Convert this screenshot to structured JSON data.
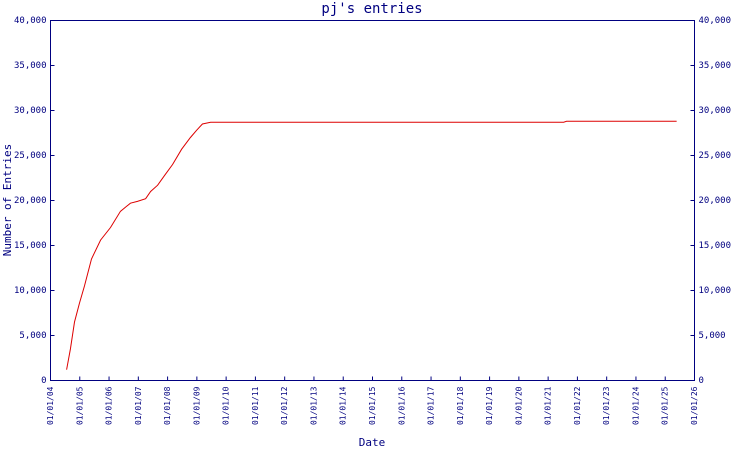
{
  "chart_data": {
    "type": "line",
    "title": "pj's entries",
    "xlabel": "Date",
    "ylabel": "Number of Entries",
    "x": [
      2004.55,
      2004.68,
      2004.82,
      2004.99,
      2005.16,
      2005.4,
      2005.71,
      2006.05,
      2006.39,
      2006.73,
      2006.97,
      2007.25,
      2007.42,
      2007.66,
      2007.9,
      2008.17,
      2008.48,
      2008.78,
      2008.99,
      2009.19,
      2009.47,
      2021.53,
      2021.63,
      2025.39
    ],
    "series": [
      {
        "name": "pj",
        "color": "#dd0000",
        "values": [
          1200,
          3500,
          6500,
          8600,
          10500,
          13500,
          15600,
          17000,
          18800,
          19700,
          19900,
          20200,
          21000,
          21700,
          22800,
          24000,
          25700,
          27000,
          27800,
          28500,
          28700,
          28700,
          28800,
          28800
        ]
      }
    ],
    "xlim": [
      2004,
      2026
    ],
    "xticks": [
      {
        "value": 2004,
        "label": "01/01/04"
      },
      {
        "value": 2005,
        "label": "01/01/05"
      },
      {
        "value": 2006,
        "label": "01/01/06"
      },
      {
        "value": 2007,
        "label": "01/01/07"
      },
      {
        "value": 2008,
        "label": "01/01/08"
      },
      {
        "value": 2009,
        "label": "01/01/09"
      },
      {
        "value": 2010,
        "label": "01/01/10"
      },
      {
        "value": 2011,
        "label": "01/01/11"
      },
      {
        "value": 2012,
        "label": "01/01/12"
      },
      {
        "value": 2013,
        "label": "01/01/13"
      },
      {
        "value": 2014,
        "label": "01/01/14"
      },
      {
        "value": 2015,
        "label": "01/01/15"
      },
      {
        "value": 2016,
        "label": "01/01/16"
      },
      {
        "value": 2017,
        "label": "01/01/17"
      },
      {
        "value": 2018,
        "label": "01/01/18"
      },
      {
        "value": 2019,
        "label": "01/01/19"
      },
      {
        "value": 2020,
        "label": "01/01/20"
      },
      {
        "value": 2021,
        "label": "01/01/21"
      },
      {
        "value": 2022,
        "label": "01/01/22"
      },
      {
        "value": 2023,
        "label": "01/01/23"
      },
      {
        "value": 2024,
        "label": "01/01/24"
      },
      {
        "value": 2025,
        "label": "01/01/25"
      },
      {
        "value": 2026,
        "label": "01/01/26"
      }
    ],
    "ylim": [
      0,
      40000
    ],
    "yticks": [
      0,
      {
        "value": 5000,
        "label": "5,000"
      },
      {
        "value": 10000,
        "label": "10,000"
      },
      {
        "value": 15000,
        "label": "15,000"
      },
      {
        "value": 20000,
        "label": "20,000"
      },
      {
        "value": 25000,
        "label": "25,000"
      },
      {
        "value": 30000,
        "label": "30,000"
      },
      {
        "value": 35000,
        "label": "35,000"
      },
      {
        "value": 40000,
        "label": "40,000"
      }
    ],
    "y2lim": [
      0,
      40000
    ],
    "y2ticks": [
      0,
      {
        "value": 5000,
        "label": "5,000"
      },
      {
        "value": 10000,
        "label": "10,000"
      },
      {
        "value": 15000,
        "label": "15,000"
      },
      {
        "value": 20000,
        "label": "20,000"
      },
      {
        "value": 25000,
        "label": "25,000"
      },
      {
        "value": 30000,
        "label": "30,000"
      },
      {
        "value": 35000,
        "label": "35,000"
      },
      {
        "value": 40000,
        "label": "40,000"
      }
    ],
    "grid": false
  }
}
